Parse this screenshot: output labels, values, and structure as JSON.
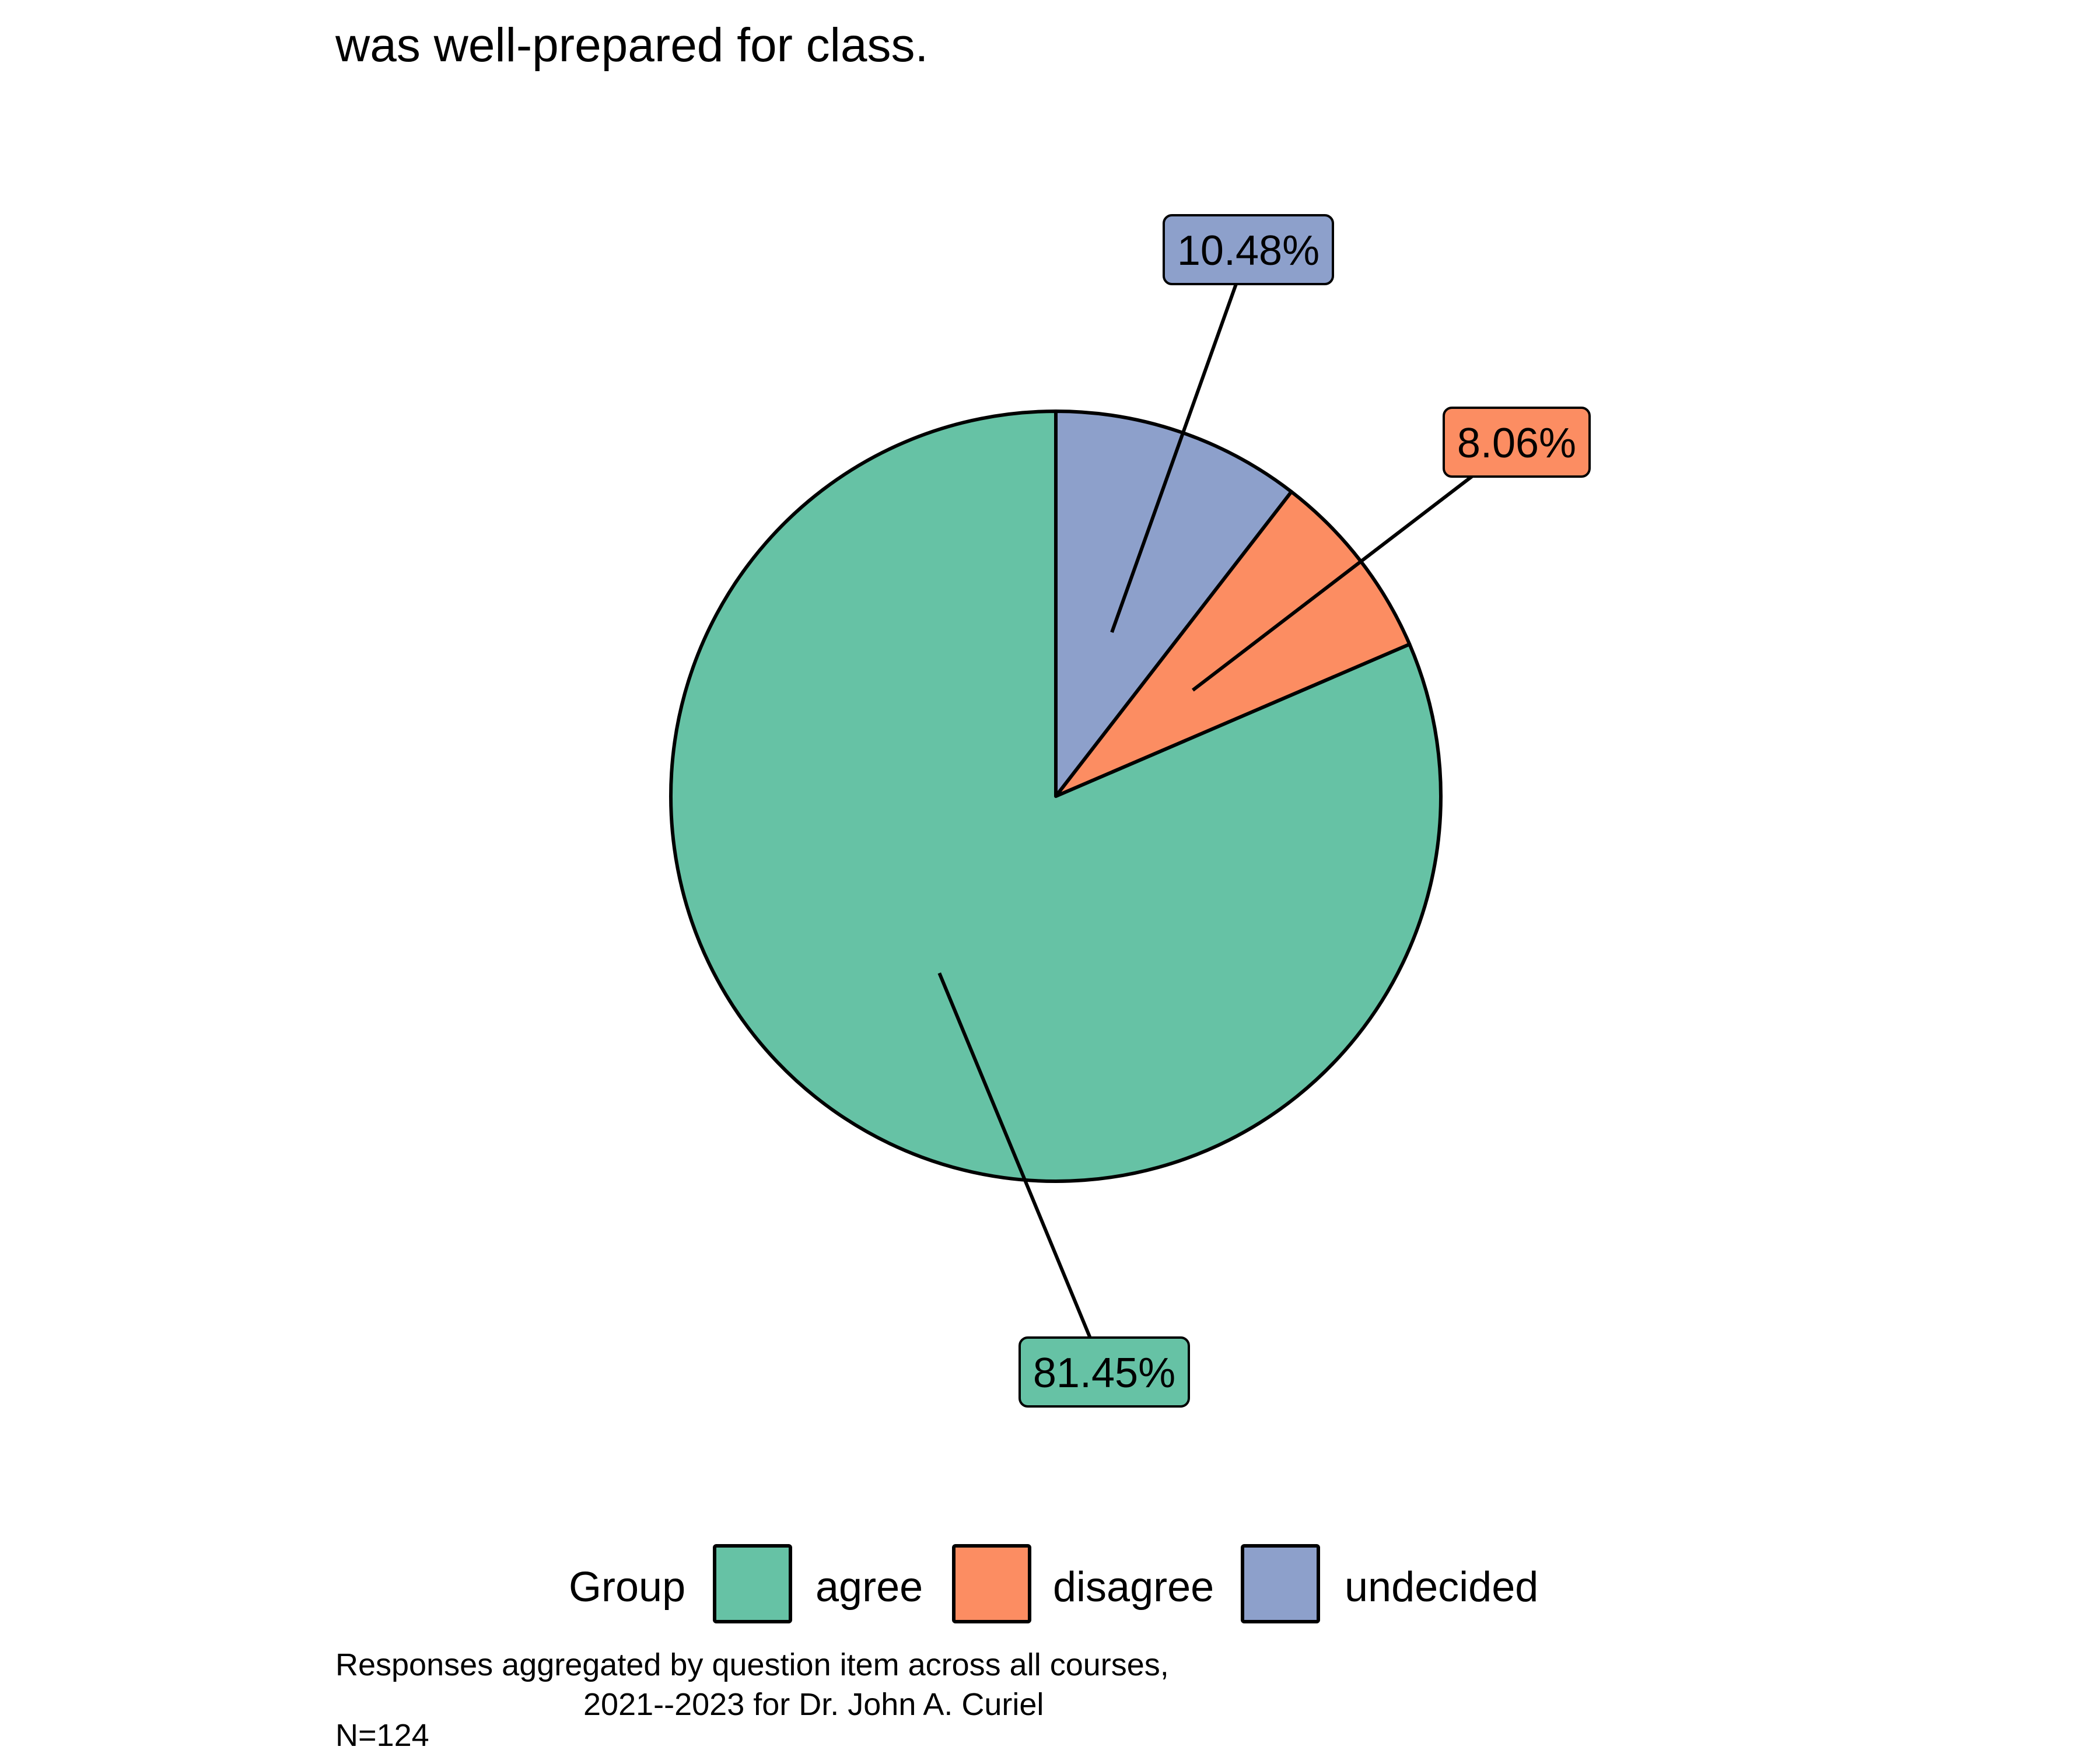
{
  "chart_data": {
    "type": "pie",
    "title": "was well-prepared for class.",
    "categories": [
      "agree",
      "disagree",
      "undecided"
    ],
    "values": [
      81.45,
      8.06,
      10.48
    ],
    "labels": [
      "81.45%",
      "8.06%",
      "10.48%"
    ],
    "colors": [
      "#66c2a5",
      "#fc8d62",
      "#8da0cb"
    ],
    "legend": {
      "title": "Group",
      "items": [
        "agree",
        "disagree",
        "undecided"
      ],
      "placement": "bottom"
    },
    "caption": {
      "line1": "Responses aggregated by question item across all courses,",
      "line2": "2021--2023 for Dr. John A. Curiel",
      "line3": "N=124"
    }
  }
}
